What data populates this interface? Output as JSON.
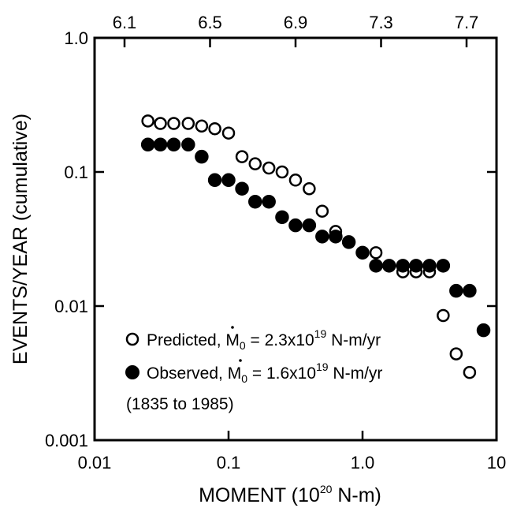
{
  "chart_data": {
    "type": "scatter",
    "xscale": "log",
    "yscale": "log",
    "xlim": [
      0.01,
      10
    ],
    "ylim": [
      0.001,
      1.0
    ],
    "x_ticks": [
      0.01,
      0.1,
      1.0,
      10
    ],
    "x_tick_labels": [
      "0.01",
      "0.1",
      "1.0",
      "10"
    ],
    "y_ticks": [
      0.001,
      0.01,
      0.1,
      1.0
    ],
    "y_tick_labels": [
      "0.001",
      "0.01",
      "0.1",
      "1.0"
    ],
    "top_axis_ticks": [
      "6.1",
      "6.5",
      "6.9",
      "7.3",
      "7.7"
    ],
    "xlabel": {
      "main": "MOMENT (10",
      "sup": "20",
      "rest": " N-m)"
    },
    "ylabel": "EVENTS/YEAR (cumulative)",
    "grid": false,
    "legend_position": "bottom-left",
    "series": [
      {
        "name": "Predicted",
        "marker": "open-circle",
        "label": {
          "prefix": "Predicted, ",
          "m": "M",
          "sub": "0",
          "eq": " = 2.3x10",
          "sup": "19",
          "unit": " N-m/yr"
        },
        "points": [
          [
            0.025,
            0.24
          ],
          [
            0.031,
            0.23
          ],
          [
            0.039,
            0.23
          ],
          [
            0.05,
            0.23
          ],
          [
            0.063,
            0.22
          ],
          [
            0.079,
            0.21
          ],
          [
            0.1,
            0.195
          ],
          [
            0.126,
            0.13
          ],
          [
            0.158,
            0.115
          ],
          [
            0.2,
            0.107
          ],
          [
            0.251,
            0.1
          ],
          [
            0.316,
            0.087
          ],
          [
            0.4,
            0.075
          ],
          [
            0.5,
            0.051
          ],
          [
            0.63,
            0.036
          ],
          [
            0.79,
            0.03
          ],
          [
            1.0,
            0.025
          ],
          [
            1.26,
            0.025
          ],
          [
            1.58,
            0.02
          ],
          [
            2.0,
            0.018
          ],
          [
            2.51,
            0.018
          ],
          [
            3.16,
            0.018
          ],
          [
            4.0,
            0.0085
          ],
          [
            5.0,
            0.0044
          ],
          [
            6.3,
            0.0032
          ]
        ]
      },
      {
        "name": "Observed",
        "marker": "filled-circle",
        "label": {
          "prefix": "Observed, ",
          "m": "M",
          "sub": "0",
          "eq": " = 1.6x10",
          "sup": "19",
          "unit": " N-m/yr",
          "note": "(1835 to 1985)"
        },
        "points": [
          [
            0.025,
            0.16
          ],
          [
            0.031,
            0.16
          ],
          [
            0.039,
            0.16
          ],
          [
            0.05,
            0.16
          ],
          [
            0.063,
            0.13
          ],
          [
            0.079,
            0.087
          ],
          [
            0.1,
            0.087
          ],
          [
            0.126,
            0.075
          ],
          [
            0.158,
            0.06
          ],
          [
            0.2,
            0.06
          ],
          [
            0.251,
            0.046
          ],
          [
            0.316,
            0.04
          ],
          [
            0.4,
            0.04
          ],
          [
            0.5,
            0.033
          ],
          [
            0.63,
            0.033
          ],
          [
            0.79,
            0.03
          ],
          [
            1.0,
            0.025
          ],
          [
            1.26,
            0.02
          ],
          [
            1.58,
            0.02
          ],
          [
            2.0,
            0.02
          ],
          [
            2.51,
            0.02
          ],
          [
            3.16,
            0.02
          ],
          [
            4.0,
            0.02
          ],
          [
            5.0,
            0.013
          ],
          [
            6.3,
            0.013
          ],
          [
            8.0,
            0.0066
          ]
        ]
      }
    ]
  }
}
